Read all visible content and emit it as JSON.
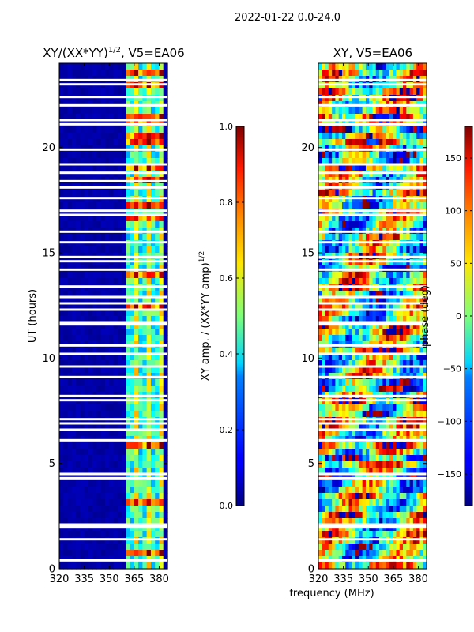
{
  "suptitle": "2022-01-22 0.0-24.0",
  "shared_xlabel": "frequency (MHz)",
  "chart_data": [
    {
      "type": "heatmap",
      "title_main": "XY/(XX*YY)",
      "title_sup": "1/2",
      "title_tail": ", V5=EA06",
      "xlabel": "",
      "ylabel": "UT (hours)",
      "xlim": [
        320,
        385
      ],
      "ylim": [
        0,
        24
      ],
      "xticks": [
        320,
        335,
        350,
        365,
        380
      ],
      "yticks": [
        0,
        5,
        10,
        15,
        20
      ],
      "xtick_labels": [
        "320",
        "335",
        "350",
        "365",
        "380"
      ],
      "ytick_labels": [
        "0",
        "5",
        "10",
        "15",
        "20"
      ],
      "colormap": "jet",
      "active_band_mhz": [
        361,
        382
      ],
      "gap_rows_hours": [
        0.4,
        1.4,
        2.0,
        2.1,
        4.3,
        4.5,
        6.1,
        6.6,
        6.9,
        7.1,
        8.0,
        8.2,
        9.1,
        9.6,
        10.2,
        10.6,
        11.6,
        11.7,
        12.3,
        12.6,
        12.9,
        13.4,
        14.2,
        14.6,
        14.8,
        15.5,
        16.0,
        16.8,
        17.0,
        17.6,
        18.1,
        18.4,
        18.8,
        19.2,
        19.9,
        21.1,
        21.3,
        22.0,
        22.4,
        23.0,
        23.2
      ]
    },
    {
      "type": "colorbar",
      "label_main": "XY amp. / (XX*YY amp)",
      "label_sup": "1/2",
      "vmin": 0.0,
      "vmax": 1.0,
      "ticks": [
        0.0,
        0.2,
        0.4,
        0.6,
        0.8,
        1.0
      ],
      "tick_labels": [
        "0.0",
        "0.2",
        "0.4",
        "0.6",
        "0.8",
        "1.0"
      ]
    },
    {
      "type": "heatmap",
      "title": "XY, V5=EA06",
      "xlabel": "frequency (MHz)",
      "ylabel": "",
      "xlim": [
        320,
        385
      ],
      "ylim": [
        0,
        24
      ],
      "xticks": [
        320,
        335,
        350,
        365,
        380
      ],
      "yticks": [
        0,
        5,
        10,
        15,
        20
      ],
      "xtick_labels": [
        "320",
        "335",
        "350",
        "365",
        "380"
      ],
      "ytick_labels": [
        "0",
        "5",
        "10",
        "15",
        "20"
      ],
      "colormap": "jet",
      "gap_rows_hours": [
        0.4,
        1.4,
        2.0,
        2.1,
        4.3,
        4.5,
        6.1,
        6.6,
        6.9,
        7.1,
        8.0,
        8.2,
        9.1,
        9.6,
        10.2,
        10.6,
        11.6,
        11.7,
        12.3,
        12.6,
        12.9,
        13.4,
        14.2,
        14.6,
        14.8,
        15.5,
        16.0,
        16.8,
        17.0,
        17.6,
        18.1,
        18.4,
        18.8,
        19.2,
        19.9,
        21.1,
        21.3,
        22.0,
        22.4,
        23.0,
        23.2
      ]
    },
    {
      "type": "colorbar",
      "label": "phase (deg)",
      "vmin": -180,
      "vmax": 180,
      "ticks": [
        -150,
        -100,
        -50,
        0,
        50,
        100,
        150
      ],
      "tick_labels": [
        "−150",
        "−100",
        "−50",
        "0",
        "50",
        "100",
        "150"
      ]
    }
  ]
}
